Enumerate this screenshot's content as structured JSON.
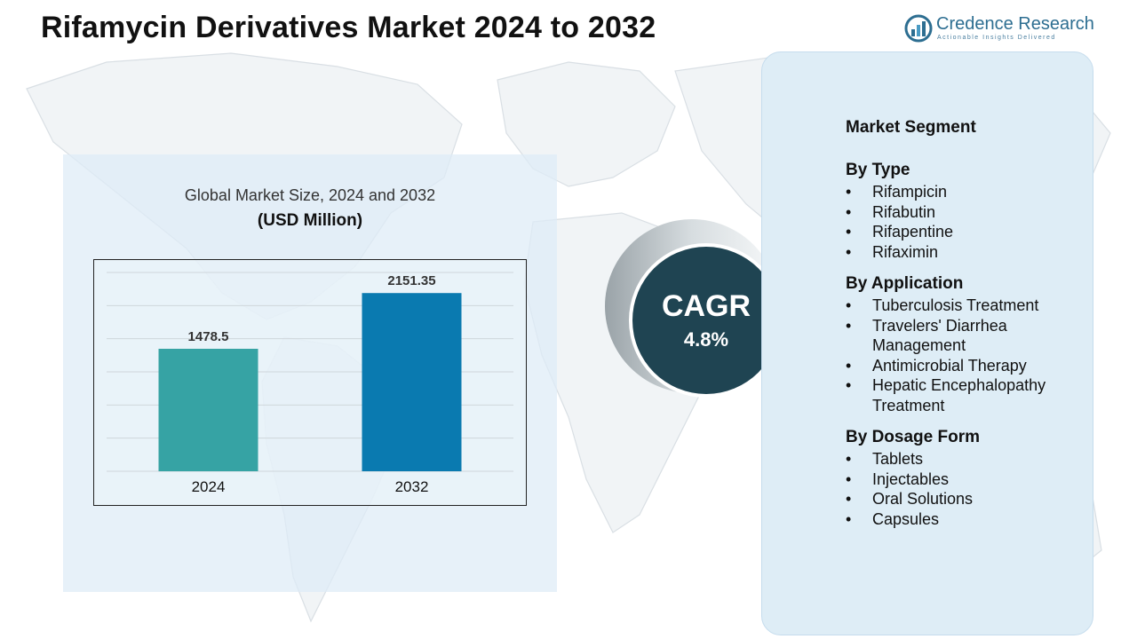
{
  "page": {
    "title": "Rifamycin Derivatives Market 2024 to 2032"
  },
  "brand": {
    "name": "Credence Research",
    "tagline": "Actionable Insights Delivered"
  },
  "chart_data": {
    "type": "bar",
    "title": "Global Market Size, 2024 and 2032",
    "subtitle": "(USD Million)",
    "categories": [
      "2024",
      "2032"
    ],
    "values": [
      1478.5,
      2151.35
    ],
    "value_labels": [
      "1478.5",
      "2151.35"
    ],
    "colors": [
      "#36a3a4",
      "#0a7ab0"
    ],
    "ylim": [
      0,
      2400
    ],
    "grid": true,
    "legend": "none"
  },
  "cagr": {
    "label": "CAGR",
    "value": "4.8%"
  },
  "segments": {
    "heading": "Market Segment",
    "bullet": "•",
    "groups": [
      {
        "title": "By Type",
        "items": [
          "Rifampicin",
          "Rifabutin",
          "Rifapentine",
          "Rifaximin"
        ]
      },
      {
        "title": "By Application",
        "items": [
          "Tuberculosis Treatment",
          "Travelers' Diarrhea Management",
          "Antimicrobial Therapy",
          "Hepatic Encephalopathy Treatment"
        ]
      },
      {
        "title": "By Dosage Form",
        "items": [
          "Tablets",
          "Injectables",
          "Oral Solutions",
          "Capsules"
        ]
      }
    ]
  },
  "colors": {
    "accent_dark": "#1f4452",
    "panel": "#deedf6",
    "brand": "#2d6e91"
  }
}
